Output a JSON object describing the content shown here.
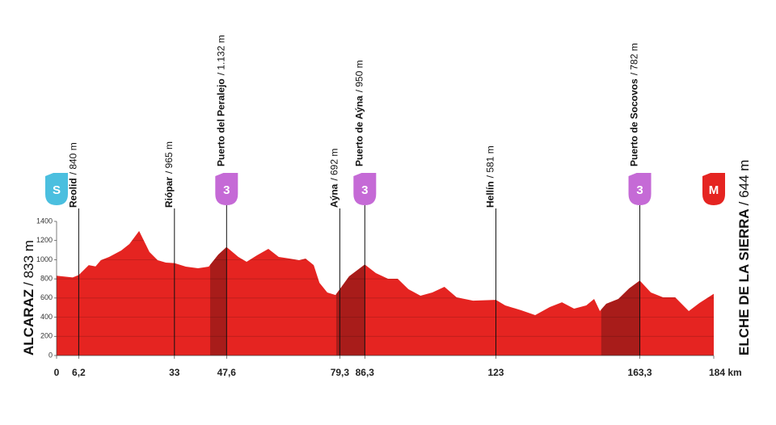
{
  "chart_data": {
    "type": "area",
    "color": "#e52421",
    "climb_color": "#a81c1a",
    "x": [
      0,
      4.5,
      6.2,
      9,
      10.9,
      12.4,
      14.7,
      18.1,
      20.4,
      23.1,
      26,
      28.3,
      30.6,
      33,
      36.2,
      39.6,
      42.6,
      45.3,
      47.6,
      50.9,
      53.2,
      56.1,
      59.3,
      62.2,
      65.2,
      67.9,
      69.7,
      72,
      73.6,
      75.8,
      78.1,
      79.3,
      81.9,
      86.3,
      89.4,
      92.8,
      95.5,
      98.5,
      101.9,
      105.2,
      108.6,
      112,
      116.6,
      123,
      125.6,
      130.1,
      134,
      138.1,
      141.5,
      144.9,
      148.3,
      150.5,
      152.1,
      153.9,
      157.3,
      160.3,
      163.3,
      166.4,
      169.8,
      173.2,
      177,
      180,
      184
    ],
    "values": [
      833,
      815,
      840,
      944,
      930,
      995,
      1029,
      1096,
      1164,
      1300,
      1080,
      995,
      970,
      965,
      928,
      911,
      928,
      1054,
      1132,
      1029,
      978,
      1046,
      1113,
      1029,
      1012,
      995,
      1012,
      944,
      759,
      658,
      632,
      692,
      826,
      950,
      860,
      801,
      801,
      692,
      624,
      658,
      717,
      607,
      573,
      581,
      523,
      472,
      422,
      506,
      556,
      489,
      523,
      590,
      464,
      540,
      590,
      700,
      782,
      658,
      607,
      607,
      464,
      548,
      644
    ],
    "xlim": [
      0,
      184
    ],
    "ylim": [
      0,
      1400
    ],
    "xticks": [
      0,
      {
        "value": 6.2,
        "label": "6,2"
      },
      33,
      {
        "value": 47.6,
        "label": "47,6"
      },
      {
        "value": 79.3,
        "label": "79,3"
      },
      {
        "value": 86.3,
        "label": "86,3"
      },
      123,
      {
        "value": 163.3,
        "label": "163,3"
      },
      {
        "value": 184,
        "label": "184 km"
      }
    ],
    "yticks": [
      0,
      200,
      400,
      600,
      800,
      1000,
      1200,
      1400
    ],
    "grid": true,
    "start": {
      "name": "ALCARAZ",
      "altitude": "/ 833 m",
      "badge": "S",
      "badge_color": "#4bbfdf"
    },
    "finish": {
      "name": "ELCHE DE LA SIERRA",
      "altitude": "/ 644 m",
      "badge": "M",
      "badge_color": "#e52421"
    },
    "points": [
      {
        "x": 6.2,
        "name": "Reolid",
        "altitude": "/ 840 m"
      },
      {
        "x": 33,
        "name": "Riópar",
        "altitude": "/ 965 m"
      },
      {
        "x": 47.6,
        "name": "Puerto del Peralejo",
        "altitude": "/ 1.132 m",
        "badge": "3",
        "badge_color": "#c56ad6"
      },
      {
        "x": 79.3,
        "name": "Aýna",
        "altitude": "/ 692 m"
      },
      {
        "x": 86.3,
        "name": "Puerto de Aýna",
        "altitude": "/ 950 m",
        "badge": "3",
        "badge_color": "#c56ad6"
      },
      {
        "x": 123,
        "name": "Hellín",
        "altitude": "/ 581 m"
      },
      {
        "x": 163.3,
        "name": "Puerto de Socovos",
        "altitude": "/ 782 m",
        "badge": "3",
        "badge_color": "#c56ad6"
      }
    ],
    "climbs": [
      {
        "from": 43,
        "to": 47.6
      },
      {
        "from": 78.3,
        "to": 86.3
      },
      {
        "from": 152.5,
        "to": 163.3
      }
    ]
  }
}
